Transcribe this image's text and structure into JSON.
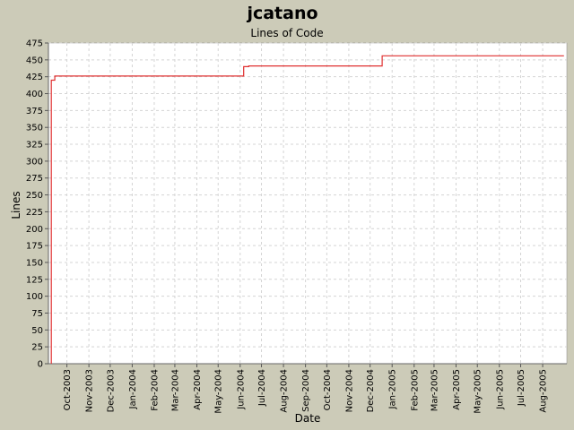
{
  "chart_data": {
    "type": "line",
    "title": "jcatano",
    "subtitle": "Lines of Code",
    "xlabel": "Date",
    "ylabel": "Lines",
    "ylim": [
      0,
      475
    ],
    "y_ticks": [
      0,
      25,
      50,
      75,
      100,
      125,
      150,
      175,
      200,
      225,
      250,
      275,
      300,
      325,
      350,
      375,
      400,
      425,
      450,
      475
    ],
    "xlim": [
      "2003-09-05",
      "2005-09-04"
    ],
    "x_ticks": [
      "2003-10-01",
      "2003-11-01",
      "2003-12-01",
      "2004-01-01",
      "2004-02-01",
      "2004-03-01",
      "2004-04-01",
      "2004-05-01",
      "2004-06-01",
      "2004-07-01",
      "2004-08-01",
      "2004-09-01",
      "2004-10-01",
      "2004-11-01",
      "2004-12-01",
      "2005-01-01",
      "2005-02-01",
      "2005-03-01",
      "2005-04-01",
      "2005-05-01",
      "2005-06-01",
      "2005-07-01",
      "2005-08-01"
    ],
    "x_tick_labels": [
      "Oct-2003",
      "Nov-2003",
      "Dec-2003",
      "Jan-2004",
      "Feb-2004",
      "Mar-2004",
      "Apr-2004",
      "May-2004",
      "Jun-2004",
      "Jul-2004",
      "Aug-2004",
      "Sep-2004",
      "Oct-2004",
      "Nov-2004",
      "Dec-2004",
      "Jan-2005",
      "Feb-2005",
      "Mar-2005",
      "Apr-2005",
      "May-2005",
      "Jun-2005",
      "Jul-2005",
      "Aug-2005"
    ],
    "grid": true,
    "line_color": "#e03030",
    "series": [
      {
        "x": [
          "2003-09-09",
          "2003-09-09",
          "2003-09-09",
          "2003-09-14",
          "2003-09-14",
          "2004-06-06",
          "2004-06-06",
          "2004-06-13",
          "2004-06-13",
          "2004-12-18",
          "2004-12-18",
          "2005-08-31"
        ],
        "y": [
          0,
          80,
          420,
          420,
          426,
          426,
          440,
          440,
          441,
          441,
          456,
          456
        ]
      }
    ]
  }
}
